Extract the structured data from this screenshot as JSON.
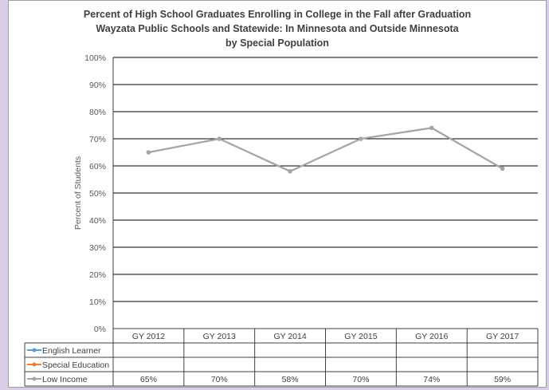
{
  "chart_data": {
    "type": "line",
    "title_lines": [
      "Percent of High School Graduates Enrolling in College in the Fall after Graduation",
      "Wayzata Public Schools and Statewide: In Minnesota and Outside Minnesota",
      "by Special Population"
    ],
    "ylabel": "Percent of Students",
    "ylim": [
      0,
      100
    ],
    "y_ticks": [
      "0%",
      "10%",
      "20%",
      "30%",
      "40%",
      "50%",
      "60%",
      "70%",
      "80%",
      "90%",
      "100%"
    ],
    "categories": [
      "GY 2012",
      "GY 2013",
      "GY 2014",
      "GY 2015",
      "GY 2016",
      "GY 2017"
    ],
    "grid": true,
    "legend": "data-table",
    "series": [
      {
        "name": "English Learner",
        "color": "#5b9bd5",
        "values": [
          null,
          null,
          null,
          null,
          null,
          null
        ],
        "labels": [
          "",
          "",
          "",
          "",
          "",
          ""
        ]
      },
      {
        "name": "Special Education",
        "color": "#ed7d31",
        "values": [
          null,
          null,
          null,
          null,
          null,
          null
        ],
        "labels": [
          "",
          "",
          "",
          "",
          "",
          ""
        ]
      },
      {
        "name": "Low Income",
        "color": "#a5a5a5",
        "values": [
          65,
          70,
          58,
          70,
          74,
          59
        ],
        "labels": [
          "65%",
          "70%",
          "58%",
          "70%",
          "74%",
          "59%"
        ]
      }
    ]
  }
}
